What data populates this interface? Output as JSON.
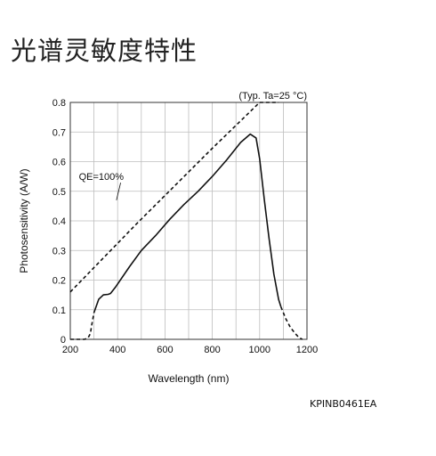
{
  "header": {
    "title": "光谱灵敏度特性"
  },
  "footer": {
    "code": "KPINB0461EA"
  },
  "chart_data": {
    "type": "line",
    "title": "",
    "condition_note": "(Typ. Ta=25 °C)",
    "xlabel": "Wavelength (nm)",
    "ylabel": "Photosensitivity (A/W)",
    "xlim": [
      200,
      1200
    ],
    "ylim": [
      0,
      0.8
    ],
    "x_ticks": [
      200,
      400,
      600,
      800,
      1000,
      1200
    ],
    "y_ticks": [
      0,
      0.1,
      0.2,
      0.3,
      0.4,
      0.5,
      0.6,
      0.7,
      0.8
    ],
    "y_tick_labels": [
      "0",
      "0.1",
      "0.2",
      "0.3",
      "0.4",
      "0.5",
      "0.6",
      "0.7",
      "0.8"
    ],
    "grid": true,
    "annotations": [
      {
        "text": "QE=100%",
        "x": 330,
        "y": 0.55,
        "points_to": [
          395,
          0.47
        ]
      }
    ],
    "series": [
      {
        "style": "dashed",
        "x": [
          200,
          480,
          800,
          1000,
          1080
        ],
        "y": [
          0.16,
          0.39,
          0.645,
          0.8,
          0.8
        ]
      },
      {
        "style": "dashed",
        "x": [
          200,
          235,
          260,
          275,
          285,
          290,
          300
        ],
        "y": [
          0.0,
          0.0,
          0.0,
          0.005,
          0.02,
          0.045,
          0.09
        ]
      },
      {
        "style": "solid",
        "x": [
          300,
          320,
          340,
          360,
          370,
          390,
          450,
          500,
          560,
          620,
          680,
          740,
          800,
          860,
          920,
          960,
          985,
          1000,
          1020,
          1040,
          1060,
          1080,
          1090
        ],
        "y": [
          0.09,
          0.135,
          0.15,
          0.152,
          0.155,
          0.175,
          0.245,
          0.3,
          0.35,
          0.405,
          0.455,
          0.5,
          0.55,
          0.605,
          0.665,
          0.693,
          0.68,
          0.61,
          0.47,
          0.34,
          0.22,
          0.135,
          0.11
        ]
      },
      {
        "style": "dashed",
        "x": [
          1090,
          1110,
          1130,
          1150,
          1165,
          1180
        ],
        "y": [
          0.11,
          0.07,
          0.04,
          0.02,
          0.007,
          0.0
        ]
      }
    ]
  }
}
